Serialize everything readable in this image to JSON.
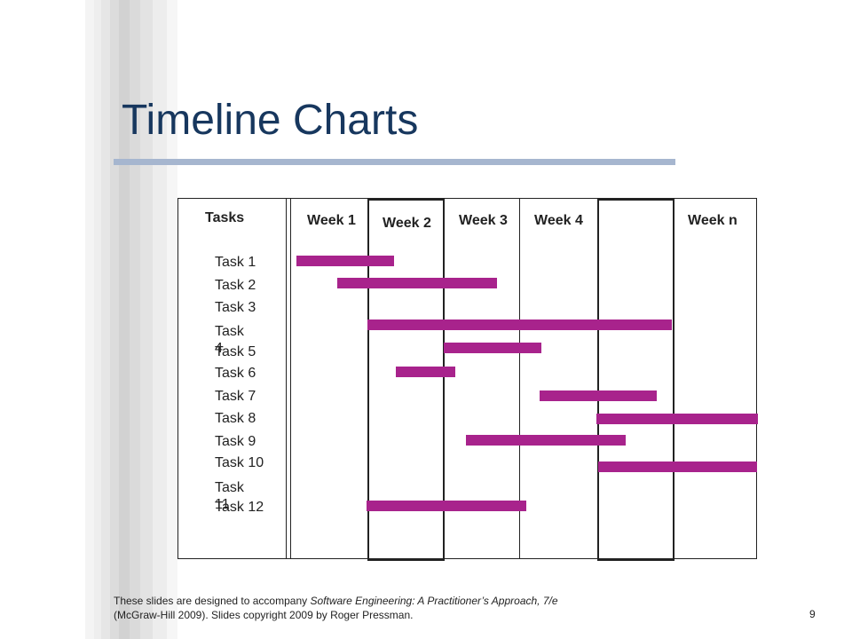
{
  "slide": {
    "title": "Timeline Charts",
    "page_number": "9",
    "footer": {
      "part1": "These slides are designed to accompany ",
      "book_title": "Software Engineering: A Practitioner’s Approach, 7/e",
      "part2": "(McGraw-Hill  2009).  Slides copyright 2009 by Roger Pressman."
    }
  },
  "chart": {
    "tasks_header": "Tasks",
    "weeks": [
      "Week 1",
      "Week 2",
      "Week 3",
      "Week 4",
      "Week n"
    ],
    "tasks": [
      "Task 1",
      "Task 2",
      "Task 3",
      "Task 4",
      "Task 5",
      "Task 6",
      "Task 7",
      "Task 8",
      "Task 9",
      "Task 10",
      "Task 11",
      "Task 12"
    ],
    "bar_color": "#a8238c"
  },
  "chart_data": {
    "type": "gantt",
    "categories": [
      "Task 1",
      "Task 2",
      "Task 3",
      "Task 4",
      "Task 5",
      "Task 6",
      "Task 7",
      "Task 8",
      "Task 9",
      "Task 10",
      "Task 11",
      "Task 12"
    ],
    "columns": [
      "Week 1",
      "Week 2",
      "Week 3",
      "Week 4",
      "Week n"
    ],
    "bars": [
      {
        "task": "Task 1",
        "start_week": 0.1,
        "end_week": 1.35
      },
      {
        "task": "Task 2",
        "start_week": 0.6,
        "end_week": 2.65
      },
      {
        "task": "Task 4",
        "start_week": 1.0,
        "end_week": 4.95
      },
      {
        "task": "Task 5",
        "start_week": 2.0,
        "end_week": 3.25
      },
      {
        "task": "Task 6",
        "start_week": 1.35,
        "end_week": 2.15
      },
      {
        "task": "Task 7",
        "start_week": 3.25,
        "end_week": 4.75
      },
      {
        "task": "Task 8",
        "start_week": 4.0,
        "end_week": 6.1
      },
      {
        "task": "Task 9",
        "start_week": 2.3,
        "end_week": 4.4
      },
      {
        "task": "Task 10",
        "start_week": 4.0,
        "end_week": 6.1
      },
      {
        "task": "Task 12",
        "start_week": 1.0,
        "end_week": 3.05
      }
    ]
  }
}
